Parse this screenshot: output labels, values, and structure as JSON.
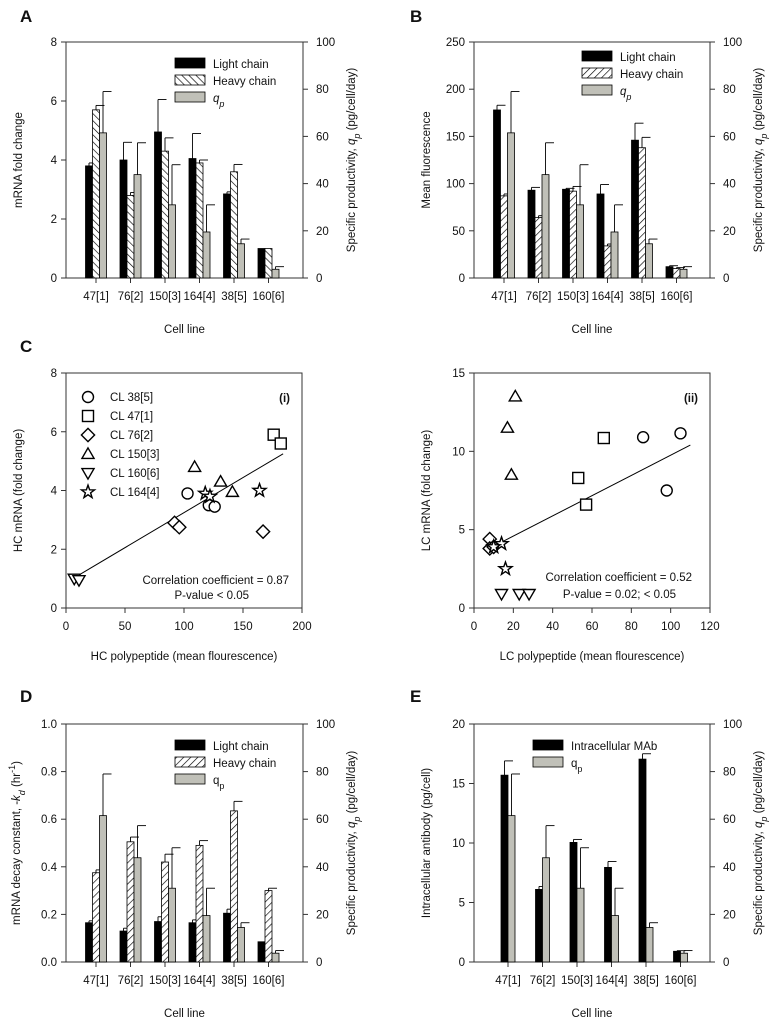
{
  "colors": {
    "light_chain": "#000000",
    "qp": "#c0c0b8",
    "axis": "#333333"
  },
  "chart_data": [
    {
      "panel": "A",
      "type": "bar",
      "categories": [
        "47[1]",
        "76[2]",
        "150[3]",
        "164[4]",
        "38[5]",
        "160[6]"
      ],
      "xlabel": "Cell line",
      "ylabel": "mRNA fold change",
      "ylim": [
        0,
        8
      ],
      "yticks": [
        0,
        2,
        4,
        6,
        8
      ],
      "y2label_parts": [
        "Specific productivity, ",
        "q",
        "p",
        " (pg/cell/day)"
      ],
      "y2lim": [
        0,
        100
      ],
      "y2ticks": [
        0,
        20,
        40,
        60,
        80,
        100
      ],
      "hatch": "backslash",
      "series": [
        {
          "name": "Light chain",
          "axis": "left",
          "fill": "black",
          "values": [
            3.8,
            4.0,
            4.95,
            4.05,
            2.85,
            1.0
          ],
          "errors": [
            0.1,
            0.6,
            1.1,
            0.85,
            0.07,
            0
          ]
        },
        {
          "name": "Heavy chain",
          "axis": "left",
          "fill": "hatch",
          "values": [
            5.7,
            2.8,
            4.3,
            3.9,
            3.6,
            1.0
          ],
          "errors": [
            0.15,
            0.1,
            0.45,
            0.1,
            0.25,
            0
          ]
        },
        {
          "name": "q",
          "sub": "p",
          "italic": true,
          "axis": "right",
          "fill": "gray",
          "values": [
            61.5,
            43.8,
            31,
            19.5,
            14.5,
            3.7
          ],
          "errors": [
            17.5,
            13.5,
            17,
            11.5,
            2,
            1.1
          ]
        }
      ]
    },
    {
      "panel": "B",
      "type": "bar",
      "categories": [
        "47[1]",
        "76[2]",
        "150[3]",
        "164[4]",
        "38[5]",
        "160[6]"
      ],
      "xlabel": "Cell line",
      "ylabel": "Mean fluorescence",
      "ylim": [
        0,
        250
      ],
      "yticks": [
        0,
        50,
        100,
        150,
        200,
        250
      ],
      "y2label_parts": [
        "Specific productivity, ",
        "q",
        "p",
        " (pg/cell/day)"
      ],
      "y2lim": [
        0,
        100
      ],
      "y2ticks": [
        0,
        20,
        40,
        60,
        80,
        100
      ],
      "hatch": "slash",
      "series": [
        {
          "name": "Light chain",
          "axis": "left",
          "fill": "black",
          "values": [
            178,
            93,
            94,
            89,
            146,
            12
          ],
          "errors": [
            5,
            3,
            1,
            10,
            18,
            1
          ]
        },
        {
          "name": "Heavy chain",
          "axis": "left",
          "fill": "hatch",
          "values": [
            87,
            64,
            92,
            34,
            138,
            10
          ],
          "errors": [
            2,
            2,
            5,
            2,
            11,
            1
          ]
        },
        {
          "name": "q",
          "sub": "p",
          "italic": true,
          "axis": "right",
          "fill": "gray",
          "values": [
            61.5,
            43.8,
            31,
            19.5,
            14.5,
            3.7
          ],
          "errors": [
            17.5,
            13.5,
            17,
            11.5,
            2,
            1.1
          ]
        }
      ]
    },
    {
      "panel": "C",
      "type": "scatter",
      "tag": "(i)",
      "xlabel": "HC polypeptide (mean flourescence)",
      "xlim": [
        0,
        200
      ],
      "xticks": [
        0,
        50,
        100,
        150,
        200
      ],
      "ylabel": "HC mRNA (fold change)",
      "ylim": [
        0,
        8
      ],
      "yticks": [
        0,
        2,
        4,
        6,
        8
      ],
      "legend": true,
      "annotations": [
        "Correlation coefficient = 0.87",
        "P-value < 0.05"
      ],
      "fit": [
        [
          10,
          1.1
        ],
        [
          184,
          5.25
        ]
      ],
      "series": [
        {
          "name": "CL 38[5]",
          "marker": "circle",
          "points": [
            [
              103,
              3.9
            ],
            [
              121,
              3.5
            ],
            [
              126,
              3.45
            ]
          ]
        },
        {
          "name": "CL 47[1]",
          "marker": "square",
          "points": [
            [
              176,
              5.9
            ],
            [
              182,
              5.6
            ]
          ]
        },
        {
          "name": "CL 76[2]",
          "marker": "diamond",
          "points": [
            [
              92,
              2.9
            ],
            [
              96,
              2.75
            ],
            [
              167,
              2.6
            ]
          ]
        },
        {
          "name": "CL 150[3]",
          "marker": "triangle-up",
          "points": [
            [
              109,
              4.8
            ],
            [
              131,
              4.3
            ],
            [
              141,
              3.95
            ]
          ]
        },
        {
          "name": "CL 160[6]",
          "marker": "triangle-down",
          "points": [
            [
              7,
              1.0
            ],
            [
              11,
              0.95
            ]
          ]
        },
        {
          "name": "CL 164[4]",
          "marker": "star",
          "points": [
            [
              118,
              3.9
            ],
            [
              122,
              3.8
            ],
            [
              164,
              4.0
            ]
          ]
        }
      ]
    },
    {
      "panel": "",
      "type": "scatter",
      "tag": "(ii)",
      "xlabel": "LC polypeptide (mean flourescence)",
      "xlim": [
        0,
        120
      ],
      "xticks": [
        0,
        20,
        40,
        60,
        80,
        100,
        120
      ],
      "ylabel": "LC mRNA (fold change)",
      "ylim": [
        0,
        15
      ],
      "yticks": [
        0,
        5,
        10,
        15
      ],
      "legend": false,
      "annotations": [
        "Correlation coefficient = 0.52",
        "P-value = 0.02; < 0.05"
      ],
      "fit": [
        [
          14,
          4.2
        ],
        [
          110,
          10.4
        ]
      ],
      "series": [
        {
          "name": "CL 38[5]",
          "marker": "circle",
          "points": [
            [
              86,
              10.9
            ],
            [
              105,
              11.15
            ],
            [
              98,
              7.5
            ]
          ]
        },
        {
          "name": "CL 47[1]",
          "marker": "square",
          "points": [
            [
              66,
              10.85
            ],
            [
              53,
              8.3
            ],
            [
              57,
              6.6
            ]
          ]
        },
        {
          "name": "CL 76[2]",
          "marker": "diamond",
          "points": [
            [
              8,
              4.4
            ],
            [
              8,
              3.8
            ],
            [
              10,
              3.9
            ]
          ]
        },
        {
          "name": "CL 150[3]",
          "marker": "triangle-up",
          "points": [
            [
              21,
              13.5
            ],
            [
              17,
              11.5
            ],
            [
              19,
              8.5
            ]
          ]
        },
        {
          "name": "CL 160[6]",
          "marker": "triangle-down",
          "points": [
            [
              14,
              0.9
            ],
            [
              23,
              0.9
            ],
            [
              28,
              0.9
            ]
          ]
        },
        {
          "name": "CL 164[4]",
          "marker": "star",
          "points": [
            [
              14,
              4.1
            ],
            [
              10,
              3.9
            ],
            [
              16,
              2.5
            ]
          ]
        }
      ]
    },
    {
      "panel": "D",
      "type": "bar",
      "categories": [
        "47[1]",
        "76[2]",
        "150[3]",
        "164[4]",
        "38[5]",
        "160[6]"
      ],
      "xlabel": "Cell line",
      "ylabel_parts": [
        "mRNA decay constant, -",
        "k",
        "d",
        " (hr",
        "-1",
        ")"
      ],
      "ylim": [
        0,
        1
      ],
      "yticks": [
        "0.0",
        "0.2",
        "0.4",
        "0.6",
        "0.8",
        "1.0"
      ],
      "y2label_parts": [
        "Specific productivity, ",
        "q",
        "p",
        " (pg/cell/day)"
      ],
      "y2lim": [
        0,
        100
      ],
      "y2ticks": [
        0,
        20,
        40,
        60,
        80,
        100
      ],
      "hatch": "slash",
      "series": [
        {
          "name": "Light chain",
          "axis": "left",
          "fill": "black",
          "values": [
            0.165,
            0.13,
            0.17,
            0.165,
            0.205,
            0.085
          ],
          "errors": [
            0.008,
            0.012,
            0.02,
            0.012,
            0.017,
            0
          ]
        },
        {
          "name": "Heavy chain",
          "axis": "left",
          "fill": "hatch",
          "values": [
            0.375,
            0.505,
            0.42,
            0.49,
            0.635,
            0.3
          ],
          "errors": [
            0.012,
            0.02,
            0.033,
            0.02,
            0.04,
            0.01
          ]
        },
        {
          "name": "q",
          "sub": "p",
          "italic": false,
          "axis": "right",
          "fill": "gray",
          "values": [
            61.5,
            43.8,
            31,
            19.5,
            14.5,
            3.7
          ],
          "errors": [
            17.5,
            13.5,
            17,
            11.5,
            2,
            1.1
          ]
        }
      ]
    },
    {
      "panel": "E",
      "type": "bar",
      "categories": [
        "47[1]",
        "76[2]",
        "150[3]",
        "164[4]",
        "38[5]",
        "160[6]"
      ],
      "xlabel": "Cell line",
      "ylabel": "Intracellular antibody (pg/cell)",
      "ylim": [
        0,
        20
      ],
      "yticks": [
        0,
        5,
        10,
        15,
        20
      ],
      "y2label_parts": [
        "Specific productivity, ",
        "q",
        "p",
        " (pg/cell/day)"
      ],
      "y2lim": [
        0,
        100
      ],
      "y2ticks": [
        0,
        20,
        40,
        60,
        80,
        100
      ],
      "series": [
        {
          "name": "Intracellular MAb",
          "axis": "left",
          "fill": "black",
          "values": [
            15.7,
            6.1,
            10.05,
            7.95,
            17.05,
            0.9
          ],
          "errors": [
            1.2,
            0.25,
            0.25,
            0.5,
            0.45,
            0.05
          ]
        },
        {
          "name": "q",
          "sub": "p",
          "italic": false,
          "axis": "right",
          "fill": "gray",
          "values": [
            61.5,
            43.8,
            31,
            19.5,
            14.5,
            3.7
          ],
          "errors": [
            17.5,
            13.5,
            17,
            11.5,
            2,
            1.1
          ]
        }
      ]
    }
  ]
}
